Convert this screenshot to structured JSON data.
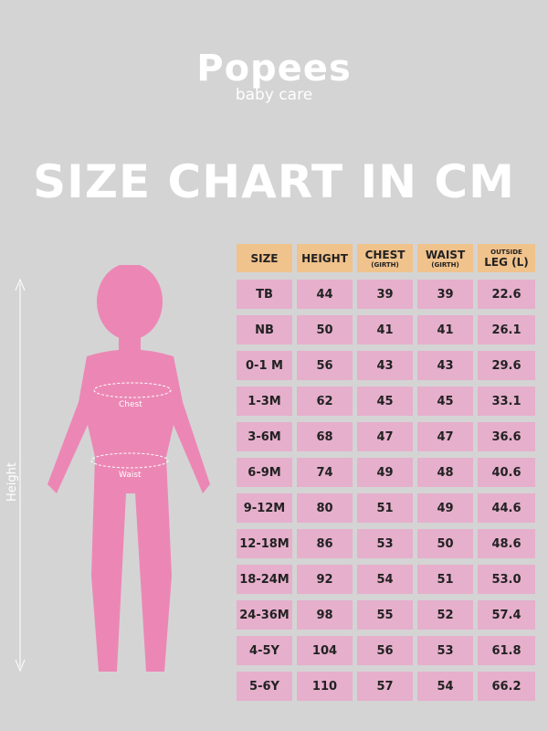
{
  "logo": {
    "brand": "Popees",
    "sub": "baby care"
  },
  "title": "SIZE CHART IN CM",
  "figure": {
    "chest_label": "Chest",
    "waist_label": "Waist",
    "height_label": "Height"
  },
  "table": {
    "headers": [
      {
        "main": "SIZE",
        "sub": ""
      },
      {
        "main": "HEIGHT",
        "sub": ""
      },
      {
        "main": "CHEST",
        "sub": "(GIRTH)"
      },
      {
        "main": "WAIST",
        "sub": "(GIRTH)"
      },
      {
        "top": "OUTSIDE",
        "main": "LEG (L)",
        "sub": ""
      }
    ],
    "rows": [
      [
        "TB",
        "44",
        "39",
        "39",
        "22.6"
      ],
      [
        "NB",
        "50",
        "41",
        "41",
        "26.1"
      ],
      [
        "0-1 M",
        "56",
        "43",
        "43",
        "29.6"
      ],
      [
        "1-3M",
        "62",
        "45",
        "45",
        "33.1"
      ],
      [
        "3-6M",
        "68",
        "47",
        "47",
        "36.6"
      ],
      [
        "6-9M",
        "74",
        "49",
        "48",
        "40.6"
      ],
      [
        "9-12M",
        "80",
        "51",
        "49",
        "44.6"
      ],
      [
        "12-18M",
        "86",
        "53",
        "50",
        "48.6"
      ],
      [
        "18-24M",
        "92",
        "54",
        "51",
        "53.0"
      ],
      [
        "24-36M",
        "98",
        "55",
        "52",
        "57.4"
      ],
      [
        "4-5Y",
        "104",
        "56",
        "53",
        "61.8"
      ],
      [
        "5-6Y",
        "110",
        "57",
        "54",
        "66.2"
      ]
    ]
  },
  "colors": {
    "background": "#d4d4d4",
    "header": "#f0c28c",
    "row": "#e6afcc",
    "figure": "#ec87b5"
  }
}
